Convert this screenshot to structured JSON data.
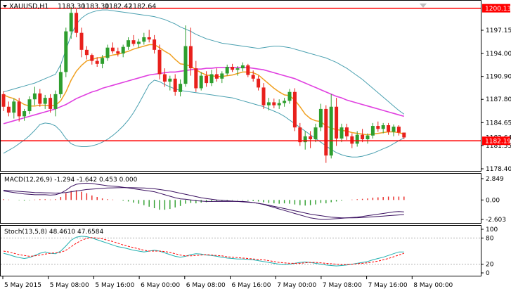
{
  "header": {
    "symbol": "XAUUSD,H1",
    "open": "1183.30",
    "high": "1183.30",
    "low": "1182.42",
    "close": "1182.64"
  },
  "price_axis": {
    "ticks": [
      "1197.15",
      "1194.00",
      "1190.90",
      "1187.80",
      "1184.65",
      "1181.55",
      "1178.40"
    ],
    "hlines": [
      "1200.13",
      "1182.19"
    ],
    "partial_tick": "1182.64"
  },
  "macd": {
    "label": "MACD(12,26,9) -1.294 -1.642 0.453 0.000",
    "ticks": [
      "2.849",
      "0.00",
      "-2.603"
    ]
  },
  "stoch": {
    "label": "Stoch(13,5,8) 48.4610 47.6584",
    "ticks": [
      "100",
      "80",
      "20",
      "0"
    ]
  },
  "time_axis": [
    "5 May 2015",
    "5 May 08:00",
    "5 May 16:00",
    "6 May 00:00",
    "6 May 08:00",
    "6 May 16:00",
    "7 May 00:00",
    "7 May 08:00",
    "7 May 16:00",
    "8 May 00:00"
  ],
  "colors": {
    "bull": "#2e9e2e",
    "bear": "#e8201c",
    "ma": "#f0a020",
    "band_mid": "#e040e0",
    "band_outer": "#4aa0b0",
    "hline": "#ff0000",
    "macd_line": "#3a1060",
    "stoch_main": "#20b0b0",
    "stoch_signal": "#ff0000"
  },
  "candles": [
    {
      "o": 1188.5,
      "h": 1188.9,
      "l": 1186.2,
      "c": 1186.8
    },
    {
      "o": 1186.8,
      "h": 1187.5,
      "l": 1185.5,
      "c": 1186.0
    },
    {
      "o": 1186.0,
      "h": 1187.9,
      "l": 1185.2,
      "c": 1187.5
    },
    {
      "o": 1187.5,
      "h": 1188.0,
      "l": 1184.8,
      "c": 1185.5
    },
    {
      "o": 1185.5,
      "h": 1186.5,
      "l": 1184.9,
      "c": 1186.2
    },
    {
      "o": 1186.2,
      "h": 1188.2,
      "l": 1185.8,
      "c": 1187.8
    },
    {
      "o": 1187.8,
      "h": 1189.5,
      "l": 1187.0,
      "c": 1188.6
    },
    {
      "o": 1188.6,
      "h": 1189.2,
      "l": 1186.8,
      "c": 1187.2
    },
    {
      "o": 1187.2,
      "h": 1188.4,
      "l": 1186.5,
      "c": 1188.0
    },
    {
      "o": 1188.0,
      "h": 1188.5,
      "l": 1186.0,
      "c": 1186.5
    },
    {
      "o": 1186.5,
      "h": 1189.0,
      "l": 1185.5,
      "c": 1188.5
    },
    {
      "o": 1188.5,
      "h": 1192.5,
      "l": 1188.0,
      "c": 1191.5
    },
    {
      "o": 1191.5,
      "h": 1197.5,
      "l": 1190.8,
      "c": 1197.0
    },
    {
      "o": 1197.0,
      "h": 1200.3,
      "l": 1196.0,
      "c": 1199.5
    },
    {
      "o": 1199.5,
      "h": 1200.0,
      "l": 1196.2,
      "c": 1196.8
    },
    {
      "o": 1196.8,
      "h": 1197.5,
      "l": 1193.5,
      "c": 1194.5
    },
    {
      "o": 1194.5,
      "h": 1195.0,
      "l": 1193.2,
      "c": 1193.8
    },
    {
      "o": 1193.8,
      "h": 1194.0,
      "l": 1192.5,
      "c": 1193.0
    },
    {
      "o": 1193.0,
      "h": 1193.5,
      "l": 1192.2,
      "c": 1192.6
    },
    {
      "o": 1192.6,
      "h": 1193.8,
      "l": 1192.0,
      "c": 1193.4
    },
    {
      "o": 1193.4,
      "h": 1195.2,
      "l": 1193.0,
      "c": 1194.8
    },
    {
      "o": 1194.8,
      "h": 1195.5,
      "l": 1194.0,
      "c": 1194.3
    },
    {
      "o": 1194.3,
      "h": 1194.8,
      "l": 1193.6,
      "c": 1194.0
    },
    {
      "o": 1194.0,
      "h": 1195.2,
      "l": 1193.5,
      "c": 1194.9
    },
    {
      "o": 1194.9,
      "h": 1196.2,
      "l": 1194.5,
      "c": 1195.8
    },
    {
      "o": 1195.8,
      "h": 1196.5,
      "l": 1195.0,
      "c": 1195.3
    },
    {
      "o": 1195.3,
      "h": 1196.0,
      "l": 1194.8,
      "c": 1195.6
    },
    {
      "o": 1195.6,
      "h": 1196.8,
      "l": 1195.2,
      "c": 1196.2
    },
    {
      "o": 1196.2,
      "h": 1197.2,
      "l": 1195.5,
      "c": 1195.9
    },
    {
      "o": 1195.9,
      "h": 1196.5,
      "l": 1194.0,
      "c": 1194.5
    },
    {
      "o": 1194.5,
      "h": 1195.2,
      "l": 1190.5,
      "c": 1191.2
    },
    {
      "o": 1191.2,
      "h": 1192.0,
      "l": 1189.5,
      "c": 1190.2
    },
    {
      "o": 1190.2,
      "h": 1191.0,
      "l": 1189.0,
      "c": 1190.6
    },
    {
      "o": 1190.6,
      "h": 1191.2,
      "l": 1188.3,
      "c": 1188.8
    },
    {
      "o": 1188.8,
      "h": 1190.5,
      "l": 1188.2,
      "c": 1189.9
    },
    {
      "o": 1189.9,
      "h": 1197.8,
      "l": 1189.5,
      "c": 1195.0
    },
    {
      "o": 1195.0,
      "h": 1197.5,
      "l": 1191.0,
      "c": 1192.0
    },
    {
      "o": 1192.0,
      "h": 1193.0,
      "l": 1188.8,
      "c": 1189.3
    },
    {
      "o": 1189.3,
      "h": 1191.5,
      "l": 1189.0,
      "c": 1191.0
    },
    {
      "o": 1191.0,
      "h": 1191.6,
      "l": 1189.5,
      "c": 1190.0
    },
    {
      "o": 1190.0,
      "h": 1191.8,
      "l": 1189.6,
      "c": 1191.2
    },
    {
      "o": 1191.2,
      "h": 1192.0,
      "l": 1190.2,
      "c": 1190.6
    },
    {
      "o": 1190.6,
      "h": 1191.6,
      "l": 1190.0,
      "c": 1191.3
    },
    {
      "o": 1191.3,
      "h": 1192.5,
      "l": 1191.0,
      "c": 1192.2
    },
    {
      "o": 1192.2,
      "h": 1192.6,
      "l": 1191.5,
      "c": 1191.8
    },
    {
      "o": 1191.8,
      "h": 1192.3,
      "l": 1191.0,
      "c": 1192.0
    },
    {
      "o": 1192.0,
      "h": 1192.8,
      "l": 1191.6,
      "c": 1192.4
    },
    {
      "o": 1192.4,
      "h": 1192.6,
      "l": 1190.8,
      "c": 1191.1
    },
    {
      "o": 1191.1,
      "h": 1191.7,
      "l": 1190.2,
      "c": 1190.6
    },
    {
      "o": 1190.6,
      "h": 1191.0,
      "l": 1189.0,
      "c": 1189.4
    },
    {
      "o": 1189.4,
      "h": 1190.0,
      "l": 1186.5,
      "c": 1187.0
    },
    {
      "o": 1187.0,
      "h": 1188.0,
      "l": 1186.3,
      "c": 1187.4
    },
    {
      "o": 1187.4,
      "h": 1187.9,
      "l": 1186.6,
      "c": 1187.0
    },
    {
      "o": 1187.0,
      "h": 1187.8,
      "l": 1186.5,
      "c": 1187.3
    },
    {
      "o": 1187.3,
      "h": 1188.0,
      "l": 1186.8,
      "c": 1187.6
    },
    {
      "o": 1187.6,
      "h": 1189.2,
      "l": 1187.2,
      "c": 1188.8
    },
    {
      "o": 1188.8,
      "h": 1189.3,
      "l": 1183.5,
      "c": 1184.0
    },
    {
      "o": 1184.0,
      "h": 1184.6,
      "l": 1181.5,
      "c": 1182.0
    },
    {
      "o": 1182.0,
      "h": 1183.5,
      "l": 1181.0,
      "c": 1182.8
    },
    {
      "o": 1182.8,
      "h": 1183.5,
      "l": 1181.2,
      "c": 1182.4
    },
    {
      "o": 1182.4,
      "h": 1184.5,
      "l": 1182.0,
      "c": 1184.0
    },
    {
      "o": 1184.0,
      "h": 1187.2,
      "l": 1183.5,
      "c": 1186.5
    },
    {
      "o": 1186.5,
      "h": 1187.0,
      "l": 1179.2,
      "c": 1180.2
    },
    {
      "o": 1180.2,
      "h": 1188.5,
      "l": 1179.8,
      "c": 1186.8
    },
    {
      "o": 1186.8,
      "h": 1188.0,
      "l": 1181.5,
      "c": 1182.5
    },
    {
      "o": 1182.5,
      "h": 1184.5,
      "l": 1182.0,
      "c": 1184.0
    },
    {
      "o": 1184.0,
      "h": 1184.5,
      "l": 1182.3,
      "c": 1182.8
    },
    {
      "o": 1182.8,
      "h": 1183.2,
      "l": 1181.2,
      "c": 1181.8
    },
    {
      "o": 1181.8,
      "h": 1183.5,
      "l": 1181.4,
      "c": 1183.0
    },
    {
      "o": 1183.0,
      "h": 1183.8,
      "l": 1182.0,
      "c": 1182.4
    },
    {
      "o": 1182.4,
      "h": 1183.2,
      "l": 1181.8,
      "c": 1182.9
    },
    {
      "o": 1182.9,
      "h": 1184.6,
      "l": 1182.5,
      "c": 1184.2
    },
    {
      "o": 1184.2,
      "h": 1184.8,
      "l": 1183.4,
      "c": 1183.8
    },
    {
      "o": 1183.8,
      "h": 1184.6,
      "l": 1183.2,
      "c": 1184.3
    },
    {
      "o": 1184.3,
      "h": 1184.6,
      "l": 1183.0,
      "c": 1183.4
    },
    {
      "o": 1183.4,
      "h": 1184.4,
      "l": 1182.8,
      "c": 1184.1
    },
    {
      "o": 1184.1,
      "h": 1184.3,
      "l": 1182.9,
      "c": 1183.3
    },
    {
      "o": 1183.3,
      "h": 1183.3,
      "l": 1182.42,
      "c": 1182.64
    }
  ],
  "ma": [
    1188.4,
    1188.1,
    1187.9,
    1187.5,
    1187.1,
    1186.9,
    1186.9,
    1187.0,
    1187.0,
    1186.9,
    1187.0,
    1187.6,
    1188.8,
    1190.4,
    1191.6,
    1192.4,
    1193.0,
    1193.2,
    1193.4,
    1193.5,
    1193.6,
    1193.8,
    1193.9,
    1194.1,
    1194.3,
    1194.6,
    1194.8,
    1195.0,
    1195.2,
    1195.2,
    1194.8,
    1194.3,
    1193.9,
    1193.2,
    1192.6,
    1192.5,
    1192.3,
    1191.8,
    1191.4,
    1191.1,
    1191.0,
    1190.9,
    1190.9,
    1191.0,
    1191.1,
    1191.3,
    1191.5,
    1191.5,
    1191.4,
    1191.1,
    1190.5,
    1189.9,
    1189.3,
    1188.8,
    1188.4,
    1188.3,
    1187.7,
    1186.8,
    1185.8,
    1185.2,
    1184.9,
    1184.8,
    1184.2,
    1183.9,
    1183.7,
    1183.6,
    1183.5,
    1183.3,
    1183.2,
    1183.1,
    1183.0,
    1183.1,
    1183.2,
    1183.3,
    1183.4,
    1183.4,
    1183.3,
    1183.1
  ],
  "band_mid": [
    1184.5,
    1184.7,
    1184.9,
    1185.1,
    1185.3,
    1185.5,
    1185.7,
    1185.9,
    1186.1,
    1186.3,
    1186.5,
    1186.8,
    1187.1,
    1187.5,
    1187.9,
    1188.2,
    1188.5,
    1188.8,
    1189.0,
    1189.3,
    1189.5,
    1189.7,
    1189.9,
    1190.1,
    1190.3,
    1190.5,
    1190.7,
    1190.9,
    1191.1,
    1191.2,
    1191.3,
    1191.4,
    1191.5,
    1191.5,
    1191.6,
    1191.7,
    1191.8,
    1191.9,
    1191.9,
    1192.0,
    1192.0,
    1192.1,
    1192.1,
    1192.1,
    1192.1,
    1192.1,
    1192.1,
    1192.1,
    1192.0,
    1191.9,
    1191.8,
    1191.6,
    1191.4,
    1191.2,
    1191.0,
    1190.8,
    1190.6,
    1190.3,
    1190.0,
    1189.7,
    1189.4,
    1189.1,
    1188.8,
    1188.5,
    1188.2,
    1188.0,
    1187.7,
    1187.5,
    1187.3,
    1187.1,
    1186.9,
    1186.7,
    1186.5,
    1186.3,
    1186.1,
    1185.9,
    1185.7,
    1185.5
  ],
  "band_upper": [
    1188.8,
    1189.0,
    1189.2,
    1189.4,
    1189.6,
    1189.8,
    1190.0,
    1190.3,
    1190.6,
    1190.9,
    1191.2,
    1192.5,
    1194.5,
    1196.5,
    1198.0,
    1198.8,
    1199.3,
    1199.6,
    1199.8,
    1199.9,
    1199.9,
    1199.8,
    1199.7,
    1199.6,
    1199.5,
    1199.4,
    1199.3,
    1199.2,
    1199.1,
    1199.0,
    1198.8,
    1198.6,
    1198.3,
    1198.0,
    1197.6,
    1197.3,
    1197.0,
    1196.6,
    1196.3,
    1196.0,
    1195.8,
    1195.6,
    1195.4,
    1195.3,
    1195.2,
    1195.1,
    1195.0,
    1194.9,
    1194.8,
    1194.7,
    1194.8,
    1194.9,
    1195.0,
    1195.0,
    1194.9,
    1194.8,
    1194.6,
    1194.4,
    1194.2,
    1194.0,
    1193.8,
    1193.6,
    1193.4,
    1193.1,
    1192.8,
    1192.4,
    1192.0,
    1191.5,
    1191.0,
    1190.5,
    1189.9,
    1189.3,
    1188.7,
    1188.1,
    1187.5,
    1186.9,
    1186.3,
    1185.8
  ],
  "band_lower": [
    1180.5,
    1180.9,
    1181.3,
    1181.8,
    1182.3,
    1182.9,
    1183.6,
    1184.4,
    1184.6,
    1184.5,
    1184.2,
    1183.5,
    1182.5,
    1181.8,
    1181.5,
    1181.4,
    1181.4,
    1181.5,
    1181.7,
    1182.0,
    1182.4,
    1182.9,
    1183.5,
    1184.2,
    1185.0,
    1186.0,
    1187.2,
    1188.5,
    1189.8,
    1190.4,
    1190.2,
    1189.8,
    1189.5,
    1189.2,
    1189.0,
    1188.9,
    1188.8,
    1188.7,
    1188.6,
    1188.5,
    1188.4,
    1188.3,
    1188.2,
    1188.1,
    1188.0,
    1187.8,
    1187.6,
    1187.4,
    1187.2,
    1187.0,
    1186.8,
    1186.5,
    1186.2,
    1185.9,
    1185.5,
    1185.0,
    1184.5,
    1184.0,
    1183.5,
    1183.0,
    1182.5,
    1182.0,
    1181.5,
    1181.0,
    1180.6,
    1180.3,
    1180.1,
    1180.0,
    1180.0,
    1180.1,
    1180.3,
    1180.5,
    1180.8,
    1181.1,
    1181.4,
    1181.8,
    1182.2,
    1182.6
  ],
  "macd_hist": [
    0.1,
    0.05,
    0,
    -0.05,
    -0.1,
    -0.05,
    0.05,
    0.1,
    0.1,
    0.05,
    0.1,
    0.4,
    0.9,
    1.2,
    1.3,
    1.1,
    0.9,
    0.6,
    0.4,
    0.2,
    0.1,
    0.05,
    0,
    -0.1,
    -0.2,
    -0.35,
    -0.5,
    -0.7,
    -0.9,
    -1.1,
    -1.3,
    -1.3,
    -1.2,
    -1.0,
    -0.8,
    -0.5,
    -0.4,
    -0.45,
    -0.35,
    -0.3,
    -0.25,
    -0.2,
    -0.15,
    -0.1,
    -0.05,
    -0.05,
    -0.05,
    -0.1,
    -0.15,
    -0.2,
    -0.3,
    -0.4,
    -0.45,
    -0.5,
    -0.45,
    -0.5,
    -0.6,
    -0.7,
    -0.75,
    -0.7,
    -0.6,
    -0.4,
    -0.45,
    -0.3,
    -0.2,
    -0.1,
    0,
    0.05,
    0.1,
    0.15,
    0.2,
    0.3,
    0.35,
    0.4,
    0.45,
    0.45,
    0.45,
    0.45
  ],
  "macd_line": [
    1.2,
    1.1,
    1.0,
    0.9,
    0.8,
    0.75,
    0.7,
    0.7,
    0.7,
    0.65,
    0.7,
    0.9,
    1.3,
    1.8,
    2.1,
    2.2,
    2.25,
    2.2,
    2.1,
    2.0,
    1.9,
    1.85,
    1.8,
    1.7,
    1.6,
    1.5,
    1.4,
    1.3,
    1.2,
    1.1,
    0.9,
    0.7,
    0.5,
    0.3,
    0.15,
    0.1,
    0.0,
    -0.1,
    -0.15,
    -0.2,
    -0.2,
    -0.2,
    -0.2,
    -0.2,
    -0.2,
    -0.2,
    -0.2,
    -0.25,
    -0.35,
    -0.45,
    -0.6,
    -0.8,
    -1.0,
    -1.2,
    -1.4,
    -1.6,
    -1.8,
    -2.0,
    -2.2,
    -2.4,
    -2.5,
    -2.6,
    -2.6,
    -2.55,
    -2.5,
    -2.45,
    -2.4,
    -2.35,
    -2.3,
    -2.2,
    -2.1,
    -2.0,
    -1.9,
    -1.8,
    -1.7,
    -1.6,
    -1.55,
    -1.6
  ],
  "macd_signal": [
    1.3,
    1.25,
    1.2,
    1.15,
    1.1,
    1.05,
    1.0,
    0.98,
    0.96,
    0.94,
    0.92,
    0.95,
    1.0,
    1.1,
    1.2,
    1.3,
    1.4,
    1.45,
    1.5,
    1.55,
    1.6,
    1.62,
    1.64,
    1.65,
    1.65,
    1.64,
    1.62,
    1.6,
    1.55,
    1.5,
    1.4,
    1.3,
    1.2,
    1.05,
    0.9,
    0.75,
    0.6,
    0.45,
    0.3,
    0.2,
    0.1,
    0.0,
    -0.05,
    -0.1,
    -0.15,
    -0.2,
    -0.25,
    -0.3,
    -0.35,
    -0.45,
    -0.55,
    -0.7,
    -0.85,
    -1.0,
    -1.15,
    -1.3,
    -1.45,
    -1.6,
    -1.75,
    -1.9,
    -2.0,
    -2.1,
    -2.2,
    -2.3,
    -2.35,
    -2.4,
    -2.4,
    -2.4,
    -2.38,
    -2.35,
    -2.3,
    -2.25,
    -2.2,
    -2.15,
    -2.1,
    -2.05,
    -2.0,
    -1.95
  ],
  "stoch_k": [
    45,
    42,
    38,
    35,
    33,
    35,
    40,
    45,
    48,
    45,
    44,
    50,
    62,
    75,
    82,
    84,
    83,
    80,
    76,
    72,
    68,
    64,
    60,
    58,
    55,
    52,
    50,
    48,
    50,
    52,
    50,
    46,
    42,
    38,
    36,
    38,
    42,
    44,
    43,
    41,
    40,
    38,
    36,
    34,
    33,
    32,
    32,
    31,
    30,
    28,
    26,
    24,
    22,
    20,
    19,
    20,
    22,
    24,
    25,
    24,
    22,
    20,
    18,
    17,
    16,
    17,
    18,
    20,
    22,
    24,
    26,
    30,
    33,
    36,
    40,
    44,
    48,
    48
  ],
  "stoch_d": [
    50,
    48,
    45,
    42,
    40,
    38,
    39,
    41,
    43,
    45,
    46,
    47,
    52,
    60,
    68,
    75,
    79,
    81,
    80,
    78,
    75,
    72,
    68,
    64,
    61,
    58,
    55,
    52,
    50,
    50,
    50,
    49,
    47,
    44,
    41,
    39,
    39,
    40,
    41,
    42,
    41,
    40,
    39,
    37,
    36,
    35,
    34,
    33,
    32,
    31,
    30,
    28,
    26,
    24,
    23,
    22,
    22,
    22,
    23,
    24,
    24,
    23,
    22,
    21,
    20,
    19,
    19,
    20,
    21,
    22,
    23,
    25,
    27,
    30,
    33,
    37,
    41,
    45
  ]
}
